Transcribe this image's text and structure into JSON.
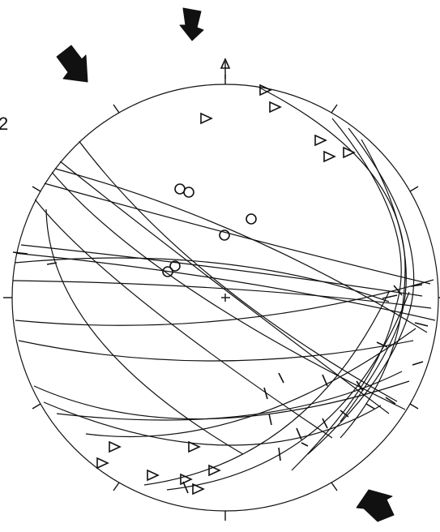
{
  "diagram": {
    "panel_label": "2",
    "north_marker": "north-arrow-icon",
    "legend": {
      "triangle": "triangle-symbol",
      "circle": "circle-symbol"
    }
  }
}
